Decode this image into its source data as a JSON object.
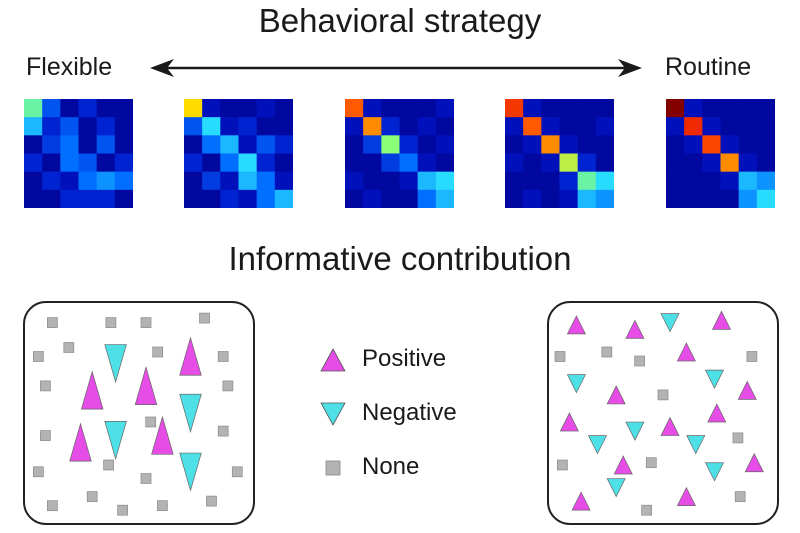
{
  "titles": {
    "strategy": "Behavioral strategy",
    "contribution": "Informative contribution"
  },
  "axis": {
    "left_label": "Flexible",
    "right_label": "Routine"
  },
  "legend": {
    "positive": "Positive",
    "negative": "Negative",
    "none": "None"
  },
  "colors": {
    "positive": "#e64de6",
    "negative": "#4de0e6",
    "none": "#b3b3b3",
    "outline": "#222222"
  },
  "matrices": [
    {
      "stage": "flexible",
      "values": [
        [
          0.55,
          0.25,
          0.05,
          0.15,
          0.05,
          0.05
        ],
        [
          0.4,
          0.15,
          0.25,
          0.05,
          0.15,
          0.05
        ],
        [
          0.05,
          0.2,
          0.3,
          0.05,
          0.25,
          0.05
        ],
        [
          0.15,
          0.05,
          0.3,
          0.25,
          0.05,
          0.15
        ],
        [
          0.05,
          0.15,
          0.1,
          0.3,
          0.35,
          0.3
        ],
        [
          0.05,
          0.05,
          0.15,
          0.15,
          0.15,
          0.05
        ]
      ]
    },
    {
      "stage": "intermediate-1",
      "values": [
        [
          0.72,
          0.1,
          0.05,
          0.05,
          0.1,
          0.05
        ],
        [
          0.25,
          0.45,
          0.1,
          0.15,
          0.05,
          0.05
        ],
        [
          0.05,
          0.3,
          0.4,
          0.1,
          0.25,
          0.15
        ],
        [
          0.15,
          0.05,
          0.3,
          0.45,
          0.15,
          0.05
        ],
        [
          0.05,
          0.2,
          0.1,
          0.4,
          0.3,
          0.1
        ],
        [
          0.05,
          0.05,
          0.15,
          0.1,
          0.3,
          0.4
        ]
      ]
    },
    {
      "stage": "intermediate-2",
      "values": [
        [
          0.85,
          0.1,
          0.05,
          0.05,
          0.05,
          0.1
        ],
        [
          0.1,
          0.8,
          0.15,
          0.05,
          0.1,
          0.05
        ],
        [
          0.05,
          0.2,
          0.6,
          0.15,
          0.05,
          0.1
        ],
        [
          0.05,
          0.05,
          0.2,
          0.3,
          0.1,
          0.05
        ],
        [
          0.1,
          0.05,
          0.05,
          0.1,
          0.4,
          0.45
        ],
        [
          0.05,
          0.1,
          0.05,
          0.05,
          0.3,
          0.4
        ]
      ]
    },
    {
      "stage": "intermediate-3",
      "values": [
        [
          0.9,
          0.1,
          0.05,
          0.05,
          0.05,
          0.05
        ],
        [
          0.1,
          0.85,
          0.1,
          0.05,
          0.05,
          0.1
        ],
        [
          0.05,
          0.1,
          0.8,
          0.1,
          0.05,
          0.05
        ],
        [
          0.1,
          0.05,
          0.1,
          0.65,
          0.15,
          0.05
        ],
        [
          0.05,
          0.05,
          0.05,
          0.15,
          0.55,
          0.45
        ],
        [
          0.05,
          0.1,
          0.05,
          0.1,
          0.4,
          0.35
        ]
      ]
    },
    {
      "stage": "routine",
      "values": [
        [
          1.0,
          0.1,
          0.05,
          0.05,
          0.05,
          0.05
        ],
        [
          0.1,
          0.92,
          0.1,
          0.05,
          0.05,
          0.05
        ],
        [
          0.05,
          0.1,
          0.88,
          0.1,
          0.05,
          0.05
        ],
        [
          0.05,
          0.05,
          0.1,
          0.8,
          0.1,
          0.05
        ],
        [
          0.05,
          0.05,
          0.05,
          0.1,
          0.4,
          0.35
        ],
        [
          0.05,
          0.05,
          0.05,
          0.05,
          0.35,
          0.45
        ]
      ]
    }
  ],
  "panels": [
    {
      "type": "flexible",
      "markers": [
        {
          "k": "none",
          "x": 0.13,
          "y": 0.1
        },
        {
          "k": "none",
          "x": 0.38,
          "y": 0.1
        },
        {
          "k": "none",
          "x": 0.53,
          "y": 0.1
        },
        {
          "k": "none",
          "x": 0.78,
          "y": 0.08
        },
        {
          "k": "none",
          "x": 0.07,
          "y": 0.25
        },
        {
          "k": "none",
          "x": 0.2,
          "y": 0.21
        },
        {
          "k": "none",
          "x": 0.58,
          "y": 0.23
        },
        {
          "k": "none",
          "x": 0.86,
          "y": 0.25
        },
        {
          "k": "none",
          "x": 0.1,
          "y": 0.38
        },
        {
          "k": "none",
          "x": 0.55,
          "y": 0.54
        },
        {
          "k": "none",
          "x": 0.88,
          "y": 0.38
        },
        {
          "k": "none",
          "x": 0.1,
          "y": 0.6
        },
        {
          "k": "none",
          "x": 0.86,
          "y": 0.58
        },
        {
          "k": "none",
          "x": 0.07,
          "y": 0.76
        },
        {
          "k": "none",
          "x": 0.92,
          "y": 0.76
        },
        {
          "k": "none",
          "x": 0.37,
          "y": 0.73
        },
        {
          "k": "none",
          "x": 0.53,
          "y": 0.79
        },
        {
          "k": "none",
          "x": 0.13,
          "y": 0.91
        },
        {
          "k": "none",
          "x": 0.3,
          "y": 0.87
        },
        {
          "k": "none",
          "x": 0.43,
          "y": 0.93
        },
        {
          "k": "none",
          "x": 0.6,
          "y": 0.91
        },
        {
          "k": "none",
          "x": 0.81,
          "y": 0.89
        },
        {
          "k": "positive",
          "x": 0.3,
          "y": 0.4,
          "s": 1.6
        },
        {
          "k": "positive",
          "x": 0.53,
          "y": 0.38,
          "s": 1.6
        },
        {
          "k": "positive",
          "x": 0.72,
          "y": 0.25,
          "s": 1.6
        },
        {
          "k": "positive",
          "x": 0.25,
          "y": 0.63,
          "s": 1.6
        },
        {
          "k": "positive",
          "x": 0.6,
          "y": 0.6,
          "s": 1.6
        },
        {
          "k": "negative",
          "x": 0.4,
          "y": 0.28,
          "s": 1.6
        },
        {
          "k": "negative",
          "x": 0.72,
          "y": 0.5,
          "s": 1.6
        },
        {
          "k": "negative",
          "x": 0.4,
          "y": 0.62,
          "s": 1.6
        },
        {
          "k": "negative",
          "x": 0.72,
          "y": 0.76,
          "s": 1.6
        }
      ]
    },
    {
      "type": "routine",
      "markers": [
        {
          "k": "positive",
          "x": 0.13,
          "y": 0.11
        },
        {
          "k": "positive",
          "x": 0.38,
          "y": 0.13
        },
        {
          "k": "positive",
          "x": 0.75,
          "y": 0.09
        },
        {
          "k": "positive",
          "x": 0.6,
          "y": 0.23
        },
        {
          "k": "positive",
          "x": 0.86,
          "y": 0.4
        },
        {
          "k": "positive",
          "x": 0.3,
          "y": 0.42
        },
        {
          "k": "positive",
          "x": 0.73,
          "y": 0.5
        },
        {
          "k": "positive",
          "x": 0.1,
          "y": 0.54
        },
        {
          "k": "positive",
          "x": 0.53,
          "y": 0.56
        },
        {
          "k": "positive",
          "x": 0.89,
          "y": 0.72
        },
        {
          "k": "positive",
          "x": 0.33,
          "y": 0.73
        },
        {
          "k": "positive",
          "x": 0.15,
          "y": 0.89
        },
        {
          "k": "positive",
          "x": 0.6,
          "y": 0.87
        },
        {
          "k": "negative",
          "x": 0.53,
          "y": 0.1
        },
        {
          "k": "negative",
          "x": 0.13,
          "y": 0.37
        },
        {
          "k": "negative",
          "x": 0.72,
          "y": 0.35
        },
        {
          "k": "negative",
          "x": 0.38,
          "y": 0.58
        },
        {
          "k": "negative",
          "x": 0.22,
          "y": 0.64
        },
        {
          "k": "negative",
          "x": 0.64,
          "y": 0.64
        },
        {
          "k": "negative",
          "x": 0.72,
          "y": 0.76
        },
        {
          "k": "negative",
          "x": 0.3,
          "y": 0.83
        },
        {
          "k": "none",
          "x": 0.06,
          "y": 0.25
        },
        {
          "k": "none",
          "x": 0.26,
          "y": 0.23
        },
        {
          "k": "none",
          "x": 0.4,
          "y": 0.27
        },
        {
          "k": "none",
          "x": 0.88,
          "y": 0.25
        },
        {
          "k": "none",
          "x": 0.5,
          "y": 0.42
        },
        {
          "k": "none",
          "x": 0.82,
          "y": 0.61
        },
        {
          "k": "none",
          "x": 0.07,
          "y": 0.73
        },
        {
          "k": "none",
          "x": 0.45,
          "y": 0.72
        },
        {
          "k": "none",
          "x": 0.83,
          "y": 0.87
        },
        {
          "k": "none",
          "x": 0.43,
          "y": 0.93
        }
      ]
    }
  ]
}
